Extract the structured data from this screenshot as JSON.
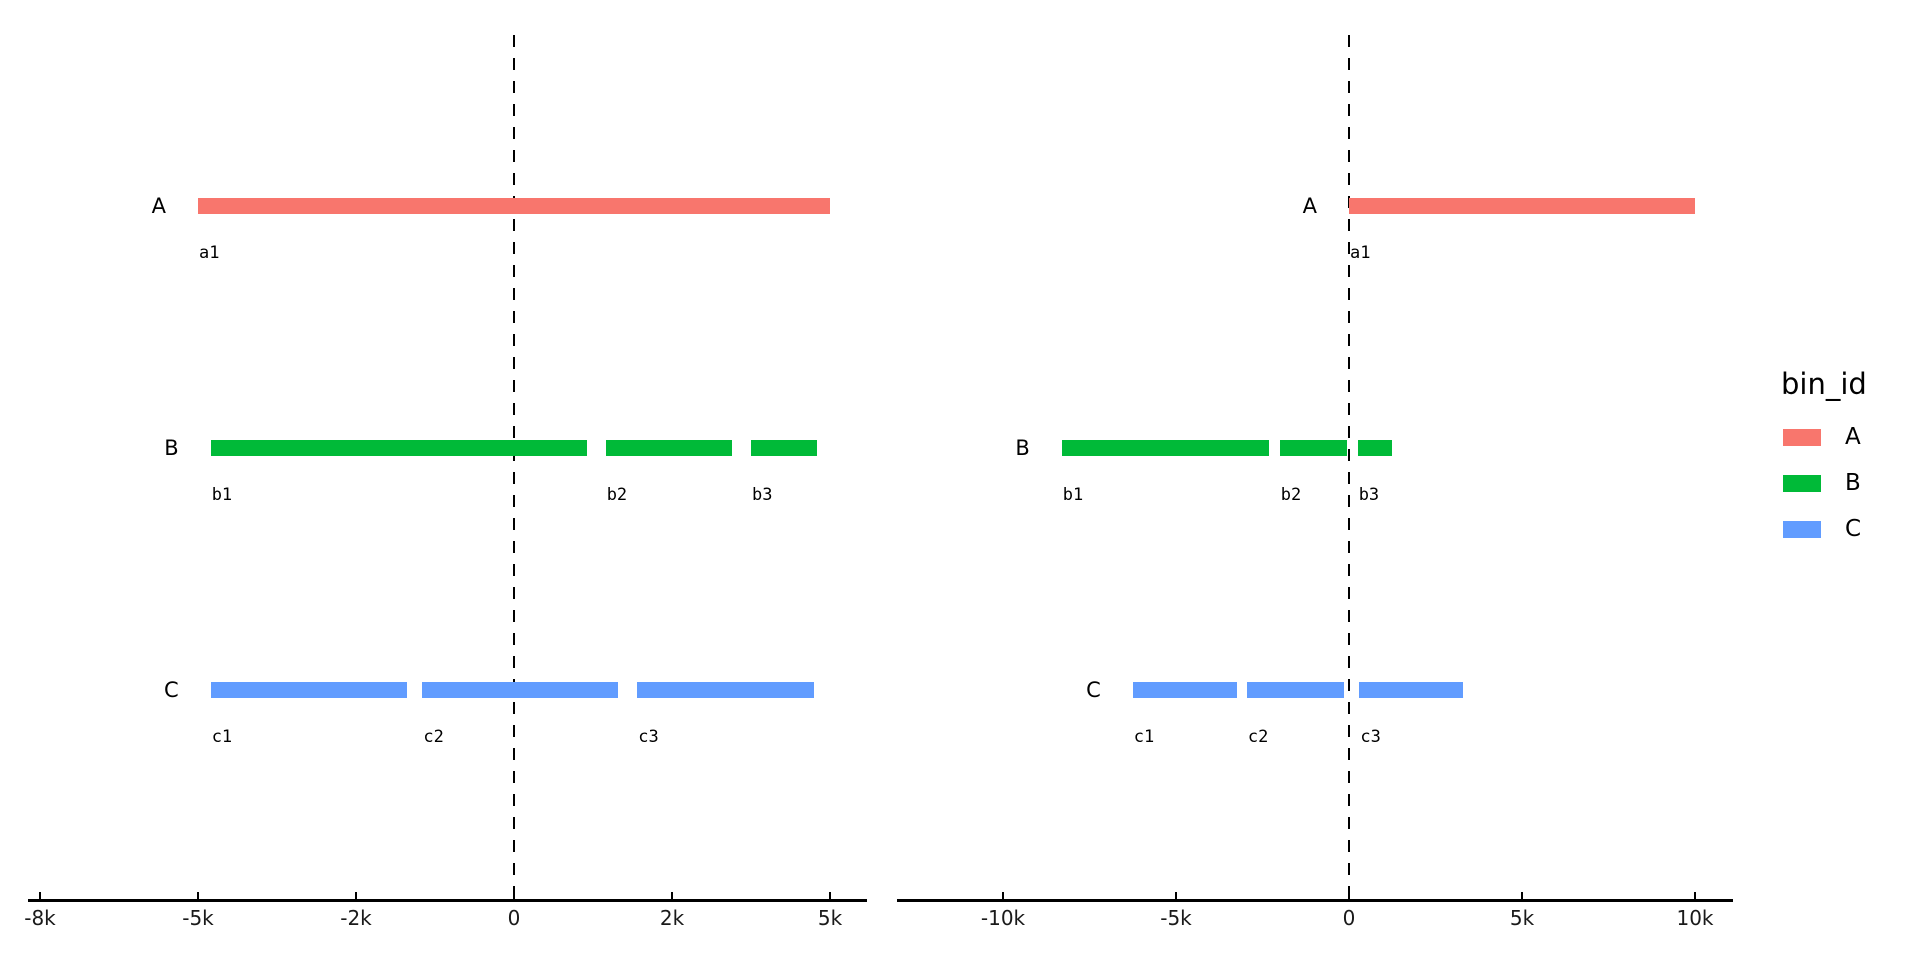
{
  "figure": {
    "background": "#ffffff",
    "title": ""
  },
  "legend": {
    "title": "bin_id",
    "position": "right",
    "items": [
      {
        "label": "A",
        "color": "#F8766D"
      },
      {
        "label": "B",
        "color": "#00BA38"
      },
      {
        "label": "C",
        "color": "#619CFF"
      }
    ]
  },
  "chart_data": [
    {
      "facet": "left",
      "type": "interval",
      "grid": "off",
      "x_domain": [
        -7690,
        5585
      ],
      "x_ticks": [
        {
          "value": -7500,
          "label": "-8k"
        },
        {
          "value": -5000,
          "label": "-5k"
        },
        {
          "value": -2500,
          "label": "-2k"
        },
        {
          "value": 0,
          "label": "0"
        },
        {
          "value": 2500,
          "label": "2k"
        },
        {
          "value": 5000,
          "label": "5k"
        }
      ],
      "vline_x": 0,
      "rows": [
        {
          "id": "A",
          "bins": [
            {
              "label": "a1",
              "start": -5000,
              "end": 5000
            }
          ]
        },
        {
          "id": "B",
          "bins": [
            {
              "label": "b1",
              "start": -4800,
              "end": 1150
            },
            {
              "label": "b2",
              "start": 1450,
              "end": 3450
            },
            {
              "label": "b3",
              "start": 3750,
              "end": 4800
            }
          ]
        },
        {
          "id": "C",
          "bins": [
            {
              "label": "c1",
              "start": -4800,
              "end": -1700
            },
            {
              "label": "c2",
              "start": -1450,
              "end": 1650
            },
            {
              "label": "c3",
              "start": 1950,
              "end": 4750
            }
          ]
        }
      ]
    },
    {
      "facet": "right",
      "type": "interval",
      "grid": "off",
      "x_domain": [
        -13064,
        11098
      ],
      "x_ticks": [
        {
          "value": -10000,
          "label": "-10k"
        },
        {
          "value": -5000,
          "label": "-5k"
        },
        {
          "value": 0,
          "label": "0"
        },
        {
          "value": 5000,
          "label": "5k"
        },
        {
          "value": 10000,
          "label": "10k"
        }
      ],
      "vline_x": 0,
      "rows": [
        {
          "id": "A",
          "bins": [
            {
              "label": "a1",
              "start": 0,
              "end": 10000
            }
          ]
        },
        {
          "id": "B",
          "bins": [
            {
              "label": "b1",
              "start": -8300,
              "end": -2300
            },
            {
              "label": "b2",
              "start": -2000,
              "end": -50
            },
            {
              "label": "b3",
              "start": 250,
              "end": 1250
            }
          ]
        },
        {
          "id": "C",
          "bins": [
            {
              "label": "c1",
              "start": -6250,
              "end": -3250
            },
            {
              "label": "c2",
              "start": -2950,
              "end": -150
            },
            {
              "label": "c3",
              "start": 300,
              "end": 3300
            }
          ]
        }
      ]
    }
  ]
}
